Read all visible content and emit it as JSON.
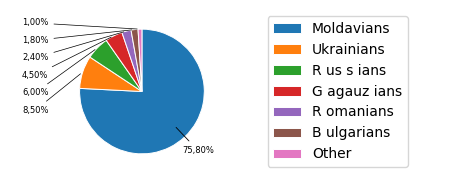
{
  "chart_data": {
    "type": "pie",
    "categories": [
      "Moldavians",
      "Ukrainians",
      "R us s ians",
      "G agauz ians",
      "R omanians",
      "B ulgarians",
      "Other"
    ],
    "values": [
      75.8,
      8.5,
      6.0,
      4.5,
      2.4,
      1.8,
      1.0
    ],
    "value_labels": [
      "75,80%",
      "8,50%",
      "6,00%",
      "4,50%",
      "2,40%",
      "1,80%",
      "1,00%"
    ],
    "data_labels": true,
    "legend": "center left"
  }
}
